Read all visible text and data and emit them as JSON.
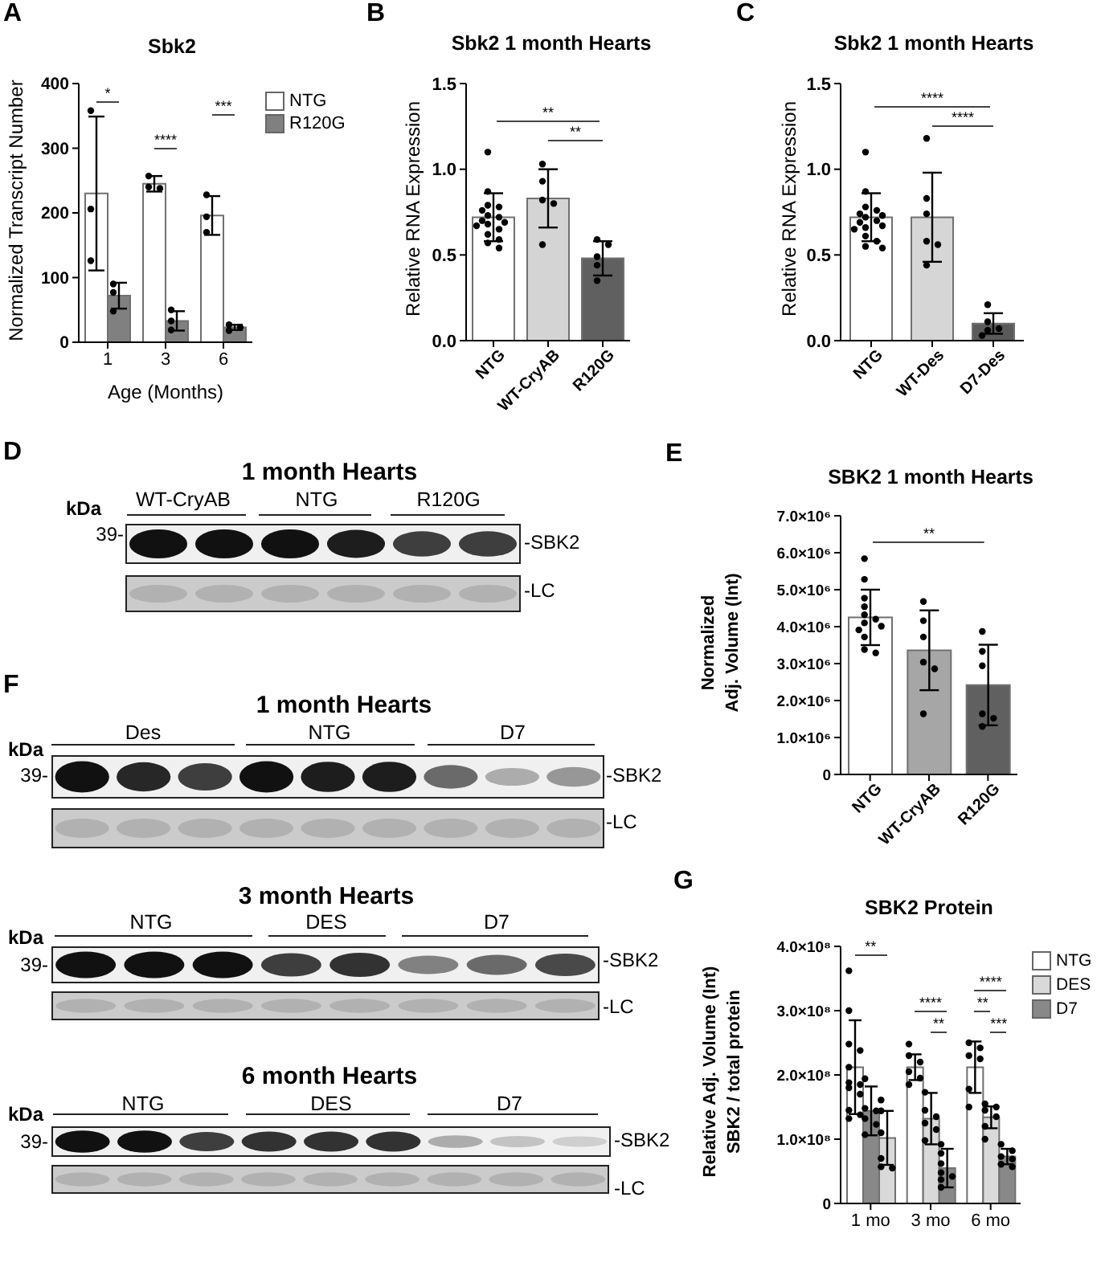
{
  "chart_data": [
    {
      "type": "bar",
      "title": "Sbk2",
      "xlabel": "Age (Months)",
      "ylabel": "Normalized Transcript Number",
      "categories": [
        "1",
        "3",
        "6"
      ],
      "series": [
        {
          "name": "NTG",
          "color": "#ffffff",
          "values": [
            230,
            245,
            196
          ],
          "errors": [
            119,
            12,
            30
          ]
        },
        {
          "name": "R120G",
          "color": "#808080",
          "values": [
            72,
            33,
            23
          ],
          "errors": [
            20,
            15,
            4
          ]
        },
        {
          "type": "scatter",
          "color": "#000000",
          "x": [
            "1",
            "1",
            "1",
            "3",
            "3",
            "3",
            "6",
            "6",
            "6"
          ],
          "values": [
            358,
            206,
            126,
            257,
            240,
            238,
            228,
            194,
            170
          ]
        },
        {
          "type": "scatter",
          "color": "#000000",
          "x": [
            "1",
            "1",
            "1",
            "3",
            "3",
            "3",
            "6",
            "6",
            "6"
          ],
          "values": [
            90,
            77,
            48,
            50,
            33,
            19,
            27,
            23,
            18
          ]
        }
      ],
      "ylim": [
        0,
        400
      ],
      "yticks": [
        0,
        100,
        200,
        300,
        400
      ],
      "legend": "top right",
      "marker": "circle",
      "annotations": [
        "A",
        "*",
        "****",
        "***"
      ]
    },
    {
      "type": "bar",
      "title": "Sbk2 1 month Hearts",
      "ylabel": "Relative RNA Expression",
      "categories": [
        "NTG",
        "WT-CryAB",
        "R120G"
      ],
      "series": [
        {
          "colors": [
            "#ffffff",
            "#d4d4d4",
            "#606060"
          ],
          "values": [
            0.72,
            0.83,
            0.48
          ],
          "errors": [
            0.14,
            0.17,
            0.1
          ]
        },
        {
          "type": "scatter",
          "color": "#000000",
          "x": [
            "NTG",
            "NTG",
            "NTG",
            "NTG",
            "NTG",
            "NTG",
            "NTG",
            "NTG",
            "NTG",
            "NTG",
            "NTG",
            "NTG",
            "NTG",
            "NTG",
            "NTG",
            "NTG",
            "WT-CryAB",
            "WT-CryAB",
            "WT-CryAB",
            "WT-CryAB",
            "WT-CryAB",
            "R120G",
            "R120G",
            "R120G",
            "R120G",
            "R120G"
          ],
          "values": [
            1.1,
            0.87,
            0.79,
            0.78,
            0.76,
            0.73,
            0.72,
            0.7,
            0.69,
            0.68,
            0.67,
            0.65,
            0.62,
            0.59,
            0.57,
            0.54,
            1.03,
            0.93,
            0.82,
            0.8,
            0.56,
            0.59,
            0.56,
            0.49,
            0.44,
            0.35
          ]
        }
      ],
      "ylim": [
        0,
        1.5
      ],
      "yticks": [
        {
          "value": 0,
          "label": "0.0"
        },
        0.5,
        {
          "value": 1,
          "label": "1.0"
        },
        1.5
      ],
      "marker": "circle",
      "annotations": [
        "B",
        "**",
        "**"
      ]
    },
    {
      "type": "bar",
      "title": "Sbk2 1 month Hearts",
      "ylabel": "Relative RNA Expression",
      "categories": [
        "NTG",
        "WT-Des",
        "D7-Des"
      ],
      "series": [
        {
          "colors": [
            "#ffffff",
            "#d6d6d6",
            "#5a5a5a"
          ],
          "values": [
            0.72,
            0.72,
            0.1
          ],
          "errors": [
            0.14,
            0.26,
            0.06
          ]
        },
        {
          "type": "scatter",
          "color": "#000000",
          "x": [
            "NTG",
            "NTG",
            "NTG",
            "NTG",
            "NTG",
            "NTG",
            "NTG",
            "NTG",
            "NTG",
            "NTG",
            "NTG",
            "NTG",
            "NTG",
            "NTG",
            "NTG",
            "NTG",
            "WT-Des",
            "WT-Des",
            "WT-Des",
            "WT-Des",
            "WT-Des",
            "WT-Des",
            "D7-Des",
            "D7-Des",
            "D7-Des",
            "D7-Des",
            "D7-Des"
          ],
          "values": [
            1.1,
            0.87,
            0.78,
            0.76,
            0.74,
            0.73,
            0.72,
            0.7,
            0.69,
            0.67,
            0.66,
            0.65,
            0.61,
            0.58,
            0.55,
            0.54,
            1.18,
            0.83,
            0.74,
            0.58,
            0.56,
            0.44,
            0.21,
            0.11,
            0.07,
            0.06,
            0.03
          ]
        }
      ],
      "ylim": [
        0,
        1.5
      ],
      "yticks": [
        {
          "value": 0,
          "label": "0.0"
        },
        0.5,
        {
          "value": 1,
          "label": "1.0"
        },
        1.5
      ],
      "marker": "circle",
      "annotations": [
        "C",
        "****",
        "****"
      ]
    },
    {
      "type": "other",
      "title": "1 month Hearts",
      "annotations": [
        "D",
        "kDa",
        "WT-CryAB",
        "NTG",
        "R120G",
        "39-",
        "-SBK2",
        "-LC"
      ]
    },
    {
      "type": "bar",
      "title": "SBK2 1 month Hearts",
      "ylabel": "Normalized\nAdj. Volume (Int)",
      "categories": [
        "NTG",
        "WT-CryAB",
        "R120G"
      ],
      "series": [
        {
          "colors": [
            "#ffffff",
            "#a6a6a6",
            "#606060"
          ],
          "values": [
            4250000,
            3360000,
            2420000
          ],
          "errors": [
            750000,
            1080000,
            1090000
          ]
        },
        {
          "type": "scatter",
          "color": "#000000",
          "x": [
            "NTG",
            "NTG",
            "NTG",
            "NTG",
            "NTG",
            "NTG",
            "NTG",
            "NTG",
            "NTG",
            "NTG",
            "NTG",
            "NTG",
            "WT-CryAB",
            "WT-CryAB",
            "WT-CryAB",
            "WT-CryAB",
            "WT-CryAB",
            "WT-CryAB",
            "R120G",
            "R120G",
            "R120G",
            "R120G",
            "R120G",
            "R120G"
          ],
          "values": [
            5840000,
            5280000,
            4770000,
            4540000,
            4320000,
            4200000,
            4100000,
            4010000,
            3910000,
            3720000,
            3380000,
            3290000,
            4680000,
            4160000,
            3720000,
            3040000,
            2860000,
            1640000,
            3870000,
            3330000,
            2940000,
            1640000,
            1520000,
            1300000
          ]
        }
      ],
      "ylim": [
        0,
        7000000
      ],
      "yticks": [
        0,
        {
          "value": 1000000,
          "label": "1.0×10⁶"
        },
        {
          "value": 2000000,
          "label": "2.0×10⁶"
        },
        {
          "value": 3000000,
          "label": "3.0×10⁶"
        },
        {
          "value": 4000000,
          "label": "4.0×10⁶"
        },
        {
          "value": 5000000,
          "label": "5.0×10⁶"
        },
        {
          "value": 6000000,
          "label": "6.0×10⁶"
        },
        {
          "value": 7000000,
          "label": "7.0×10⁶"
        }
      ],
      "marker": "circle",
      "annotations": [
        "E",
        "**"
      ]
    },
    {
      "type": "other",
      "title": "1 month Hearts",
      "annotations": [
        "F",
        "kDa",
        "Des",
        "NTG",
        "D7",
        "39-",
        "-SBK2",
        "-LC"
      ]
    },
    {
      "type": "other",
      "title": "3 month Hearts",
      "annotations": [
        "kDa",
        "NTG",
        "DES",
        "D7",
        "39-",
        "-SBK2",
        "-LC"
      ]
    },
    {
      "type": "other",
      "title": "6 month Hearts",
      "annotations": [
        "kDa",
        "NTG",
        "DES",
        "D7",
        "39-",
        "-SBK2",
        "-LC"
      ]
    },
    {
      "type": "bar",
      "title": "SBK2 Protein",
      "ylabel": "Relative Adj. Volume (Int)\nSBK2 / total protein",
      "categories": [
        "1 mo",
        "3 mo",
        "6 mo"
      ],
      "series": [
        {
          "name": "NTG",
          "color": "#ffffff",
          "values": [
            212000000,
            212000000,
            212000000
          ],
          "errors": [
            73000000,
            20000000,
            40000000
          ]
        },
        {
          "name": "DES",
          "color": "#d9d9d9",
          "colors": [
            "#888888",
            "#d9d9d9",
            "#d9d9d9"
          ],
          "values": [
            144000000,
            132000000,
            134000000
          ],
          "errors": [
            38000000,
            40000000,
            17000000
          ]
        },
        {
          "name": "D7",
          "color": "#888888",
          "colors": [
            "#d9d9d9",
            "#888888",
            "#888888"
          ],
          "values": [
            102000000,
            55000000,
            73000000
          ],
          "errors": [
            42000000,
            30000000,
            12000000
          ]
        },
        {
          "type": "scatter",
          "color": "#000000",
          "x": [
            "1 mo",
            "1 mo",
            "1 mo",
            "1 mo",
            "1 mo",
            "1 mo",
            "1 mo",
            "1 mo",
            "1 mo",
            "1 mo",
            "1 mo",
            "1 mo",
            "3 mo",
            "3 mo",
            "3 mo",
            "3 mo",
            "3 mo",
            "3 mo",
            "6 mo",
            "6 mo",
            "6 mo",
            "6 mo",
            "6 mo",
            "6 mo"
          ],
          "values": [
            362000000,
            300000000,
            248000000,
            238000000,
            212000000,
            188000000,
            185000000,
            180000000,
            170000000,
            145000000,
            138000000,
            132000000,
            248000000,
            230000000,
            220000000,
            205000000,
            195000000,
            185000000,
            250000000,
            242000000,
            230000000,
            225000000,
            178000000,
            150000000
          ]
        },
        {
          "type": "scatter",
          "color": "#000000",
          "x": [
            "1 mo",
            "1 mo",
            "1 mo",
            "1 mo",
            "1 mo",
            "1 mo",
            "3 mo",
            "3 mo",
            "3 mo",
            "3 mo",
            "3 mo",
            "3 mo",
            "6 mo",
            "6 mo",
            "6 mo",
            "6 mo",
            "6 mo",
            "6 mo"
          ],
          "values": [
            194000000,
            148000000,
            144000000,
            132000000,
            123000000,
            107000000,
            173000000,
            145000000,
            135000000,
            125000000,
            115000000,
            98000000,
            155000000,
            150000000,
            145000000,
            135000000,
            120000000,
            100000000
          ]
        },
        {
          "type": "scatter",
          "color": "#000000",
          "x": [
            "1 mo",
            "1 mo",
            "1 mo",
            "1 mo",
            "1 mo",
            "1 mo",
            "3 mo",
            "3 mo",
            "3 mo",
            "3 mo",
            "3 mo",
            "3 mo",
            "3 mo",
            "6 mo",
            "6 mo",
            "6 mo",
            "6 mo",
            "6 mo",
            "6 mo"
          ],
          "values": [
            161000000,
            144000000,
            110000000,
            70000000,
            57000000,
            55000000,
            92000000,
            78000000,
            62000000,
            48000000,
            42000000,
            37000000,
            25000000,
            92000000,
            82000000,
            73000000,
            69000000,
            61000000,
            57000000
          ]
        }
      ],
      "ylim": [
        0,
        400000000
      ],
      "yticks": [
        0,
        {
          "value": 100000000,
          "label": "1.0×10⁸"
        },
        {
          "value": 200000000,
          "label": "2.0×10⁸"
        },
        {
          "value": 300000000,
          "label": "3.0×10⁸"
        },
        {
          "value": 400000000,
          "label": "4.0×10⁸"
        }
      ],
      "legend": "top right",
      "marker": "circle",
      "annotations": [
        "G",
        "**",
        "****",
        "**",
        "****",
        "**",
        "***"
      ]
    }
  ]
}
